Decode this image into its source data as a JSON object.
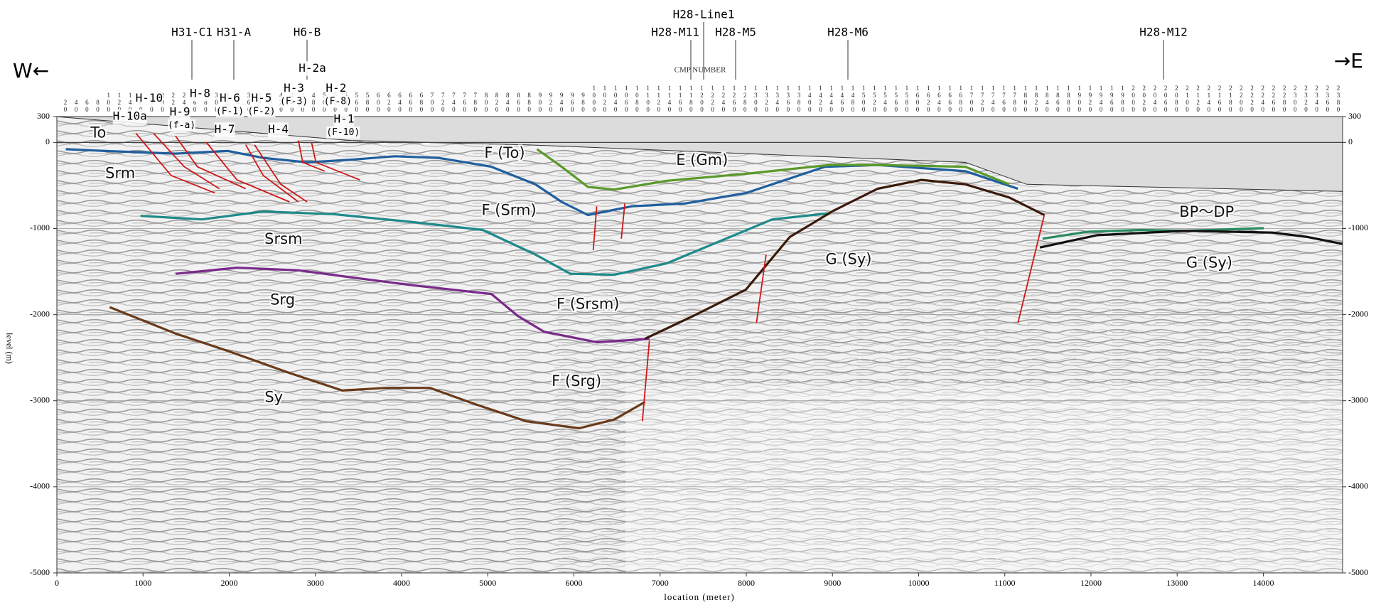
{
  "direction": {
    "west": "W←",
    "east": "→E"
  },
  "cmp_label": "CMP NUMBER",
  "wells": [
    "H31-C1",
    "H31-A",
    "H6-B",
    "H28-Line1",
    "H28-M11",
    "H28-M5",
    "H28-M6",
    "H28-M12"
  ],
  "fault_labels": [
    "H-10",
    "H-10a",
    "H-9",
    "(f-a)",
    "H-8",
    "H-6",
    "(F-1)",
    "H-7",
    "H-5",
    "(F-2)",
    "H-4",
    "H-3",
    "(F-3)",
    "H-2a",
    "H-2",
    "(F-8)",
    "H-1",
    "(F-10)"
  ],
  "formation_labels": [
    "To",
    "Srm",
    "Srsm",
    "Srg",
    "Sy",
    "F (To)",
    "E (Gm)",
    "F (Srm)",
    "F (Srsm)",
    "F (Srg)",
    "G (Sy)",
    "G (Sy)",
    "BP～DP"
  ],
  "cmp_ticks": [
    20,
    40,
    60,
    80,
    100,
    120,
    140,
    160,
    180,
    200,
    220,
    240,
    260,
    280,
    300,
    320,
    340,
    360,
    380,
    400,
    420,
    440,
    460,
    480,
    500,
    520,
    540,
    560,
    580,
    600,
    620,
    640,
    660,
    680,
    700,
    720,
    740,
    760,
    780,
    800,
    820,
    840,
    860,
    880,
    900,
    920,
    940,
    960,
    980,
    1000,
    1020,
    1040,
    1060,
    1080,
    1100,
    1120,
    1140,
    1160,
    1180,
    1200,
    1220,
    1240,
    1260,
    1280,
    1300,
    1320,
    1340,
    1360,
    1380,
    1400,
    1420,
    1440,
    1460,
    1480,
    1500,
    1520,
    1540,
    1560,
    1580,
    1600,
    1620,
    1640,
    1660,
    1680,
    1700,
    1720,
    1740,
    1760,
    1780,
    1800,
    1820,
    1840,
    1860,
    1880,
    1900,
    1920,
    1940,
    1960,
    1980,
    2000,
    2020,
    2040,
    2060,
    2080,
    2100,
    2120,
    2140,
    2160,
    2180,
    2200,
    2220,
    2240,
    2260,
    2280,
    2300,
    2320,
    2340,
    2360,
    2380
  ],
  "x_axis": {
    "title": "location (meter)",
    "lim": [
      0,
      14920
    ],
    "ticks": [
      0,
      1000,
      2000,
      3000,
      4000,
      5000,
      6000,
      7000,
      8000,
      9000,
      10000,
      11000,
      12000,
      13000,
      14000
    ]
  },
  "y_axis": {
    "title": "level (m)",
    "lim": [
      300,
      -5000
    ],
    "ticks": [
      300,
      0,
      -1000,
      -2000,
      -3000,
      -4000,
      -5000
    ]
  }
}
